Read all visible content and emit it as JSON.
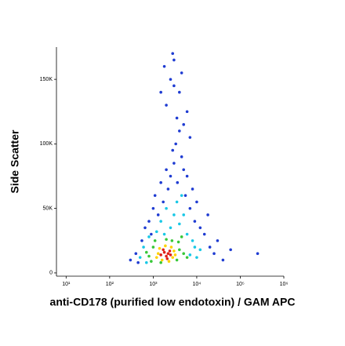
{
  "chart_data": {
    "type": "scatter",
    "xlabel": "anti-CD178 (purified low endotoxin) / GAM APC",
    "ylabel": "Side Scatter",
    "xscale": "log",
    "xlim": [
      6,
      1000000
    ],
    "ylim": [
      -2500,
      175000
    ],
    "xticks": [
      {
        "value": 10,
        "label": "10¹"
      },
      {
        "value": 100,
        "label": "10²"
      },
      {
        "value": 1000,
        "label": "10³"
      },
      {
        "value": 10000,
        "label": "10⁴"
      },
      {
        "value": 100000,
        "label": "10⁵"
      },
      {
        "value": 1000000,
        "label": "10⁶"
      }
    ],
    "yticks": [
      0,
      {
        "value": 50000,
        "label": "50K"
      },
      {
        "value": 100000,
        "label": "100K"
      },
      {
        "value": 150000,
        "label": "150K"
      }
    ],
    "series": [
      {
        "color": "#1f3cd2",
        "x": [
          300,
          400,
          450,
          550,
          650,
          800,
          900,
          1000,
          1100,
          1300,
          1500,
          1700,
          2000,
          2200,
          2500,
          2800,
          3000,
          3300,
          3600,
          4000,
          4500,
          5000,
          5500,
          6000,
          7000,
          8000,
          9000,
          10000,
          12000,
          15000,
          18000,
          20000,
          25000,
          30000,
          40000,
          60000,
          2000,
          2500,
          3000,
          3500,
          4000,
          5000,
          6000,
          1500,
          1800,
          2800,
          7000,
          250000,
          3000,
          4500
        ],
        "values": [
          10000,
          15000,
          8000,
          25000,
          35000,
          40000,
          30000,
          50000,
          60000,
          45000,
          70000,
          55000,
          80000,
          65000,
          75000,
          95000,
          85000,
          100000,
          70000,
          110000,
          90000,
          80000,
          60000,
          75000,
          50000,
          65000,
          40000,
          55000,
          35000,
          30000,
          45000,
          20000,
          15000,
          25000,
          10000,
          18000,
          130000,
          150000,
          165000,
          120000,
          140000,
          115000,
          125000,
          140000,
          160000,
          170000,
          105000,
          15000,
          145000,
          155000
        ]
      },
      {
        "color": "#19c8e6",
        "x": [
          500,
          600,
          7000,
          9000,
          1200,
          2500,
          4000,
          6000,
          3000,
          800,
          10000,
          1500,
          5000,
          2000,
          3500,
          700,
          8000,
          12000,
          1800,
          4500
        ],
        "values": [
          12000,
          20000,
          14000,
          20000,
          32000,
          35000,
          38000,
          30000,
          45000,
          28000,
          12000,
          40000,
          45000,
          50000,
          55000,
          8000,
          25000,
          18000,
          30000,
          60000
        ]
      },
      {
        "color": "#38c838",
        "x": [
          800,
          1000,
          3500,
          4000,
          1100,
          3800,
          2000,
          2700,
          900,
          1500,
          5000,
          6000,
          700,
          4500
        ],
        "values": [
          13000,
          20000,
          10000,
          18000,
          25000,
          24000,
          26000,
          25000,
          9000,
          8000,
          15000,
          12000,
          16000,
          28000
        ]
      },
      {
        "color": "#ffd200",
        "x": [
          1200,
          1400,
          2800,
          3000,
          1600,
          2600,
          1900,
          2300,
          1300,
          3200
        ],
        "values": [
          12000,
          19000,
          12000,
          17000,
          10000,
          20000,
          21000,
          9000,
          15000,
          14000
        ]
      },
      {
        "color": "#e0201a",
        "x": [
          1500,
          1800,
          2000,
          2200,
          2500,
          1700,
          2100,
          2400
        ],
        "values": [
          14000,
          16000,
          13000,
          15000,
          14000,
          18000,
          11000,
          17000
        ]
      }
    ]
  }
}
